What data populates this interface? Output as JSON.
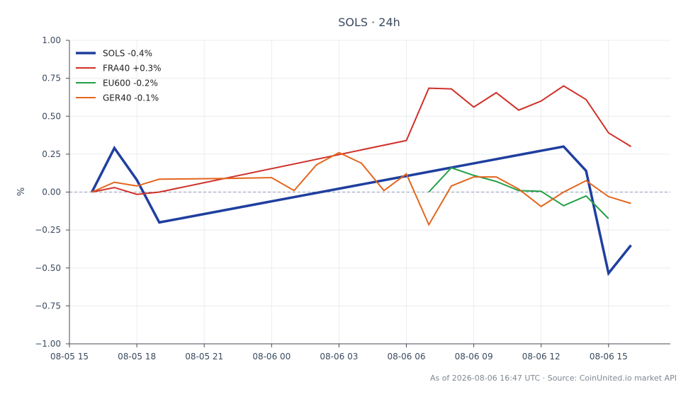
{
  "chart_data": {
    "type": "line",
    "title": "SOLS · 24h",
    "xlabel": "",
    "ylabel": "%",
    "ylim": [
      -1.0,
      1.0
    ],
    "xlim_hours": [
      15.0,
      41.75
    ],
    "x_ticks": [
      {
        "h": 15,
        "label": "08-05 15"
      },
      {
        "h": 18,
        "label": "08-05 18"
      },
      {
        "h": 21,
        "label": "08-05 21"
      },
      {
        "h": 24,
        "label": "08-06 00"
      },
      {
        "h": 27,
        "label": "08-06 03"
      },
      {
        "h": 30,
        "label": "08-06 06"
      },
      {
        "h": 33,
        "label": "08-06 09"
      },
      {
        "h": 36,
        "label": "08-06 12"
      },
      {
        "h": 39,
        "label": "08-06 15"
      }
    ],
    "y_ticks": [
      1.0,
      0.75,
      0.5,
      0.25,
      0.0,
      -0.25,
      -0.5,
      -0.75,
      -1.0
    ],
    "y_tick_labels": [
      "1.00",
      "0.75",
      "0.50",
      "0.25",
      "0.00",
      "−0.25",
      "−0.50",
      "−0.75",
      "−1.00"
    ],
    "grid": true,
    "zero_line": true,
    "legend_position": "top-left",
    "series": [
      {
        "name": "SOLS -0.4%",
        "color": "#1f3f9f",
        "width": 3.5,
        "points": [
          [
            16,
            0.0
          ],
          [
            17,
            0.29
          ],
          [
            18,
            0.08
          ],
          [
            19,
            -0.2
          ],
          [
            37,
            0.3
          ],
          [
            38,
            0.14
          ],
          [
            39,
            -0.535
          ],
          [
            40,
            -0.35
          ]
        ]
      },
      {
        "name": "FRA40 +0.3%",
        "color": "#d03028",
        "width": 2,
        "points": [
          [
            16,
            0.0
          ],
          [
            17,
            0.03
          ],
          [
            18,
            -0.015
          ],
          [
            19,
            0.0
          ],
          [
            30,
            0.34
          ],
          [
            31,
            0.685
          ],
          [
            32,
            0.68
          ],
          [
            33,
            0.56
          ],
          [
            34,
            0.655
          ],
          [
            35,
            0.54
          ],
          [
            36,
            0.6
          ],
          [
            37,
            0.7
          ],
          [
            38,
            0.61
          ],
          [
            39,
            0.39
          ],
          [
            40,
            0.3
          ]
        ]
      },
      {
        "name": "EU600 -0.2%",
        "color": "#22a045",
        "width": 2,
        "points": [
          [
            31,
            0.0
          ],
          [
            32,
            0.16
          ],
          [
            33,
            0.11
          ],
          [
            34,
            0.07
          ],
          [
            35,
            0.01
          ],
          [
            36,
            0.005
          ],
          [
            37,
            -0.09
          ],
          [
            38,
            -0.025
          ],
          [
            39,
            -0.175
          ]
        ]
      },
      {
        "name": "GER40 -0.1%",
        "color": "#e3651d",
        "width": 2,
        "points": [
          [
            16,
            0.0
          ],
          [
            17,
            0.065
          ],
          [
            18,
            0.04
          ],
          [
            19,
            0.085
          ],
          [
            22,
            0.09
          ],
          [
            24,
            0.095
          ],
          [
            25,
            0.01
          ],
          [
            26,
            0.18
          ],
          [
            27,
            0.26
          ],
          [
            28,
            0.19
          ],
          [
            29,
            0.01
          ],
          [
            30,
            0.12
          ],
          [
            31,
            -0.215
          ],
          [
            32,
            0.04
          ],
          [
            33,
            0.1
          ],
          [
            34,
            0.1
          ],
          [
            35,
            0.02
          ],
          [
            36,
            -0.095
          ],
          [
            37,
            0.0
          ],
          [
            38,
            0.075
          ],
          [
            39,
            -0.03
          ],
          [
            40,
            -0.075
          ]
        ]
      }
    ]
  },
  "footer": {
    "text": "As of 2026-08-06 16:47 UTC · Source: CoinUnited.io market API"
  }
}
